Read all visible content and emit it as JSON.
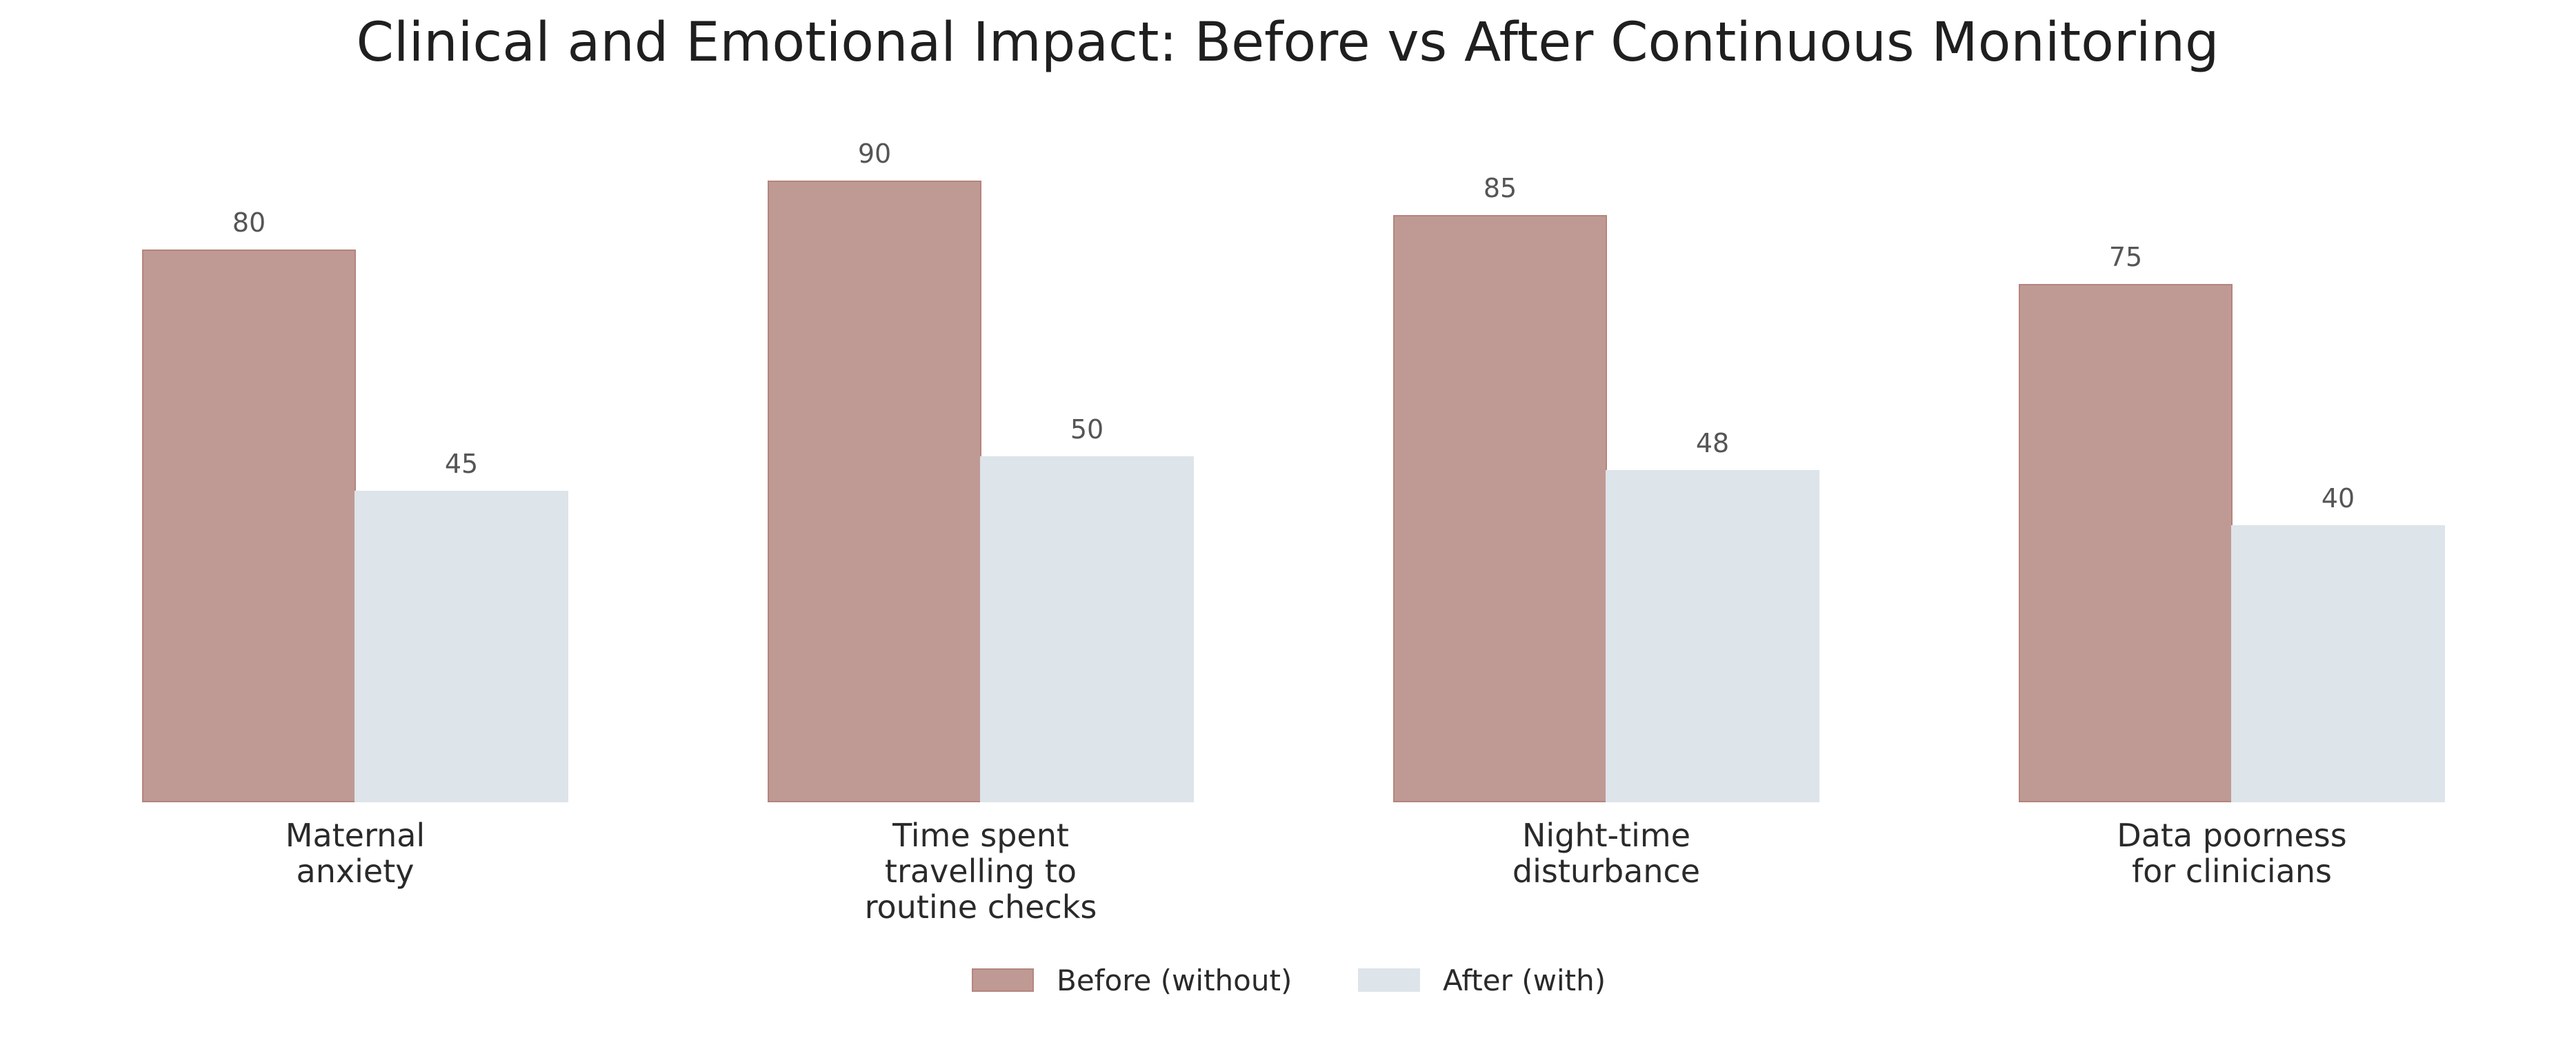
{
  "chart_data": {
    "type": "bar",
    "title": "Clinical and Emotional Impact: Before vs After Continuous Monitoring",
    "xlabel": "",
    "ylabel": "",
    "ylim": [
      0,
      100
    ],
    "grid": false,
    "legend_position": "bottom-center",
    "categories": [
      [
        "Maternal",
        "anxiety"
      ],
      [
        "Time spent",
        "travelling to",
        "routine checks"
      ],
      [
        "Night-time",
        "disturbance"
      ],
      [
        "Data poorness",
        "for clinicians"
      ]
    ],
    "series": [
      {
        "name": "Before (without)",
        "color": "#bf9a94",
        "edge_color": "#b5847d",
        "values": [
          80,
          90,
          85,
          75
        ]
      },
      {
        "name": "After (with)",
        "color": "#dde4ea",
        "edge_color": "#dde4ea",
        "values": [
          45,
          50,
          48,
          40
        ]
      }
    ]
  }
}
